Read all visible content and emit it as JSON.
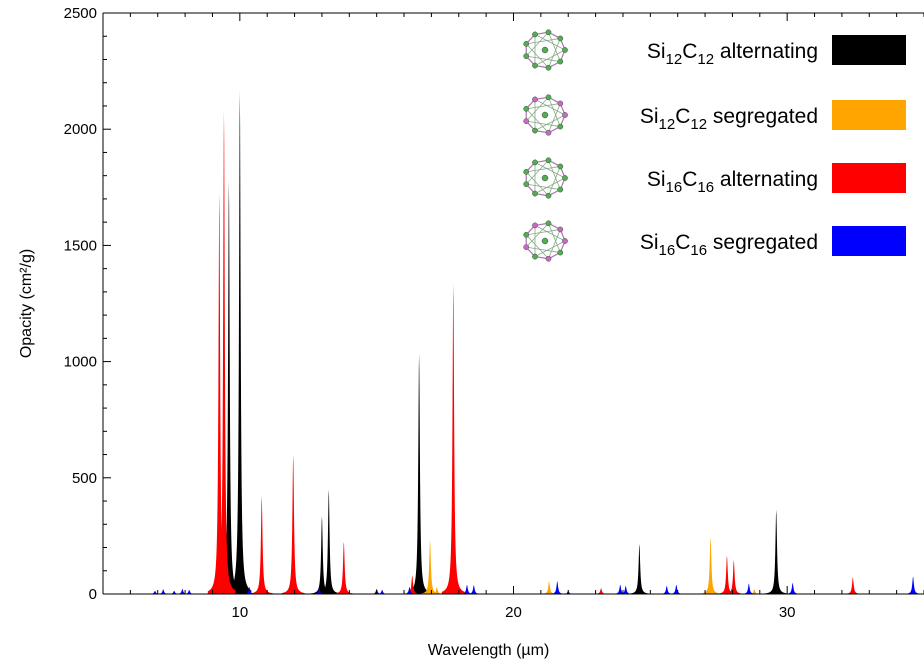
{
  "chart_data": {
    "type": "area",
    "title": "",
    "xlabel": "Wavelength (µm)",
    "ylabel": "Opacity (cm²/g)",
    "xlim": [
      5,
      35
    ],
    "ylim": [
      0,
      2500
    ],
    "x_ticks": [
      10,
      20,
      30
    ],
    "y_ticks": [
      0,
      500,
      1000,
      1500,
      2000,
      2500
    ],
    "grid": false,
    "legend_position": "top-right",
    "series": [
      {
        "name": "Si12C12 alternating",
        "label_parts": [
          {
            "text": "Si"
          },
          {
            "text": "12",
            "sub": true
          },
          {
            "text": "C"
          },
          {
            "text": "12",
            "sub": true
          },
          {
            "text": " alternating"
          }
        ],
        "color": "#000000",
        "peaks": [
          {
            "x": 9.6,
            "y": 1780
          },
          {
            "x": 10.0,
            "y": 2165
          },
          {
            "x": 13.0,
            "y": 335
          },
          {
            "x": 13.25,
            "y": 450
          },
          {
            "x": 16.55,
            "y": 1035
          },
          {
            "x": 24.6,
            "y": 215
          },
          {
            "x": 29.6,
            "y": 362
          }
        ]
      },
      {
        "name": "Si12C12 segregated",
        "label_parts": [
          {
            "text": "Si"
          },
          {
            "text": "12",
            "sub": true
          },
          {
            "text": "C"
          },
          {
            "text": "12",
            "sub": true
          },
          {
            "text": " segregated"
          }
        ],
        "color": "#ffa500",
        "peaks": [
          {
            "x": 16.95,
            "y": 232
          },
          {
            "x": 17.2,
            "y": 30
          },
          {
            "x": 21.3,
            "y": 55
          },
          {
            "x": 27.2,
            "y": 245
          },
          {
            "x": 28.8,
            "y": 20
          }
        ]
      },
      {
        "name": "Si16C16 alternating",
        "label_parts": [
          {
            "text": "Si"
          },
          {
            "text": "16",
            "sub": true
          },
          {
            "text": "C"
          },
          {
            "text": "16",
            "sub": true
          },
          {
            "text": " alternating"
          }
        ],
        "color": "#ff0000",
        "peaks": [
          {
            "x": 9.25,
            "y": 1730
          },
          {
            "x": 9.42,
            "y": 2080
          },
          {
            "x": 10.8,
            "y": 420
          },
          {
            "x": 11.95,
            "y": 600
          },
          {
            "x": 13.8,
            "y": 225
          },
          {
            "x": 16.3,
            "y": 80
          },
          {
            "x": 17.8,
            "y": 1335
          },
          {
            "x": 23.2,
            "y": 25
          },
          {
            "x": 27.8,
            "y": 165
          },
          {
            "x": 28.05,
            "y": 145
          },
          {
            "x": 32.4,
            "y": 72
          }
        ]
      },
      {
        "name": "Si16C16 segregated",
        "label_parts": [
          {
            "text": "Si"
          },
          {
            "text": "16",
            "sub": true
          },
          {
            "text": "C"
          },
          {
            "text": "16",
            "sub": true
          },
          {
            "text": " segregated"
          }
        ],
        "color": "#0000ff",
        "peaks": [
          {
            "x": 6.9,
            "y": 14
          },
          {
            "x": 7.2,
            "y": 20
          },
          {
            "x": 7.6,
            "y": 14
          },
          {
            "x": 7.9,
            "y": 22
          },
          {
            "x": 8.15,
            "y": 18
          },
          {
            "x": 10.35,
            "y": 30
          },
          {
            "x": 12.9,
            "y": 25
          },
          {
            "x": 15.0,
            "y": 22
          },
          {
            "x": 15.2,
            "y": 18
          },
          {
            "x": 16.2,
            "y": 30
          },
          {
            "x": 18.3,
            "y": 40
          },
          {
            "x": 18.55,
            "y": 38
          },
          {
            "x": 21.6,
            "y": 55
          },
          {
            "x": 22.0,
            "y": 14
          },
          {
            "x": 23.9,
            "y": 40
          },
          {
            "x": 24.1,
            "y": 35
          },
          {
            "x": 25.6,
            "y": 35
          },
          {
            "x": 25.95,
            "y": 40
          },
          {
            "x": 28.6,
            "y": 45
          },
          {
            "x": 30.2,
            "y": 48
          },
          {
            "x": 34.6,
            "y": 75
          }
        ]
      }
    ]
  }
}
